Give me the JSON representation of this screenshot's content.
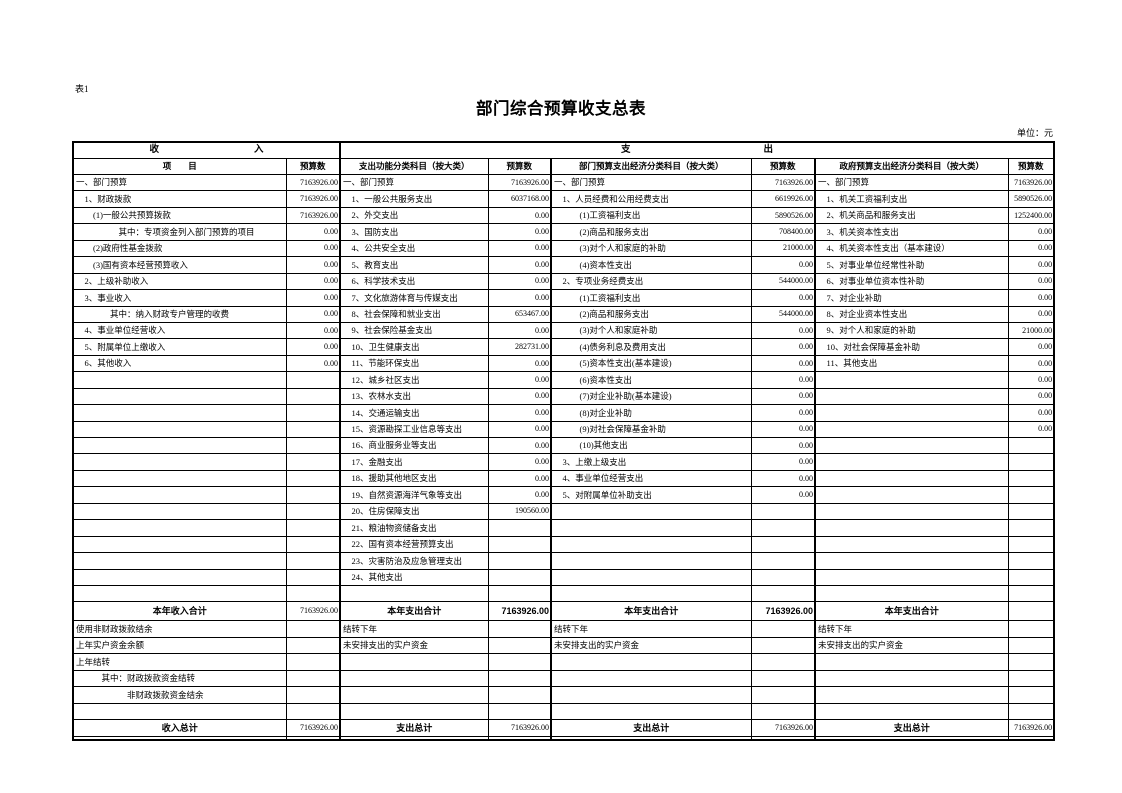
{
  "page": {
    "sheet_label": "表1",
    "title": "部门综合预算收支总表",
    "unit_note": "单位：元"
  },
  "table": {
    "group_headers": {
      "income": "收　　　　　　　　　　入",
      "expense": "支　　　　　　　　　　　　　　出"
    },
    "column_headers": [
      "项　　目",
      "预算数",
      "支出功能分类科目（按大类）",
      "预算数",
      "部门预算支出经济分类科目（按大类）",
      "预算数",
      "政府预算支出经济分类科目（按大类）",
      "预算数"
    ],
    "rows": [
      {
        "type": "data",
        "cells": [
          "一、部门预算",
          "7163926.00",
          "一、部门预算",
          "7163926.00",
          "一、部门预算",
          "7163926.00",
          "一、部门预算",
          "7163926.00"
        ]
      },
      {
        "type": "data",
        "cells": [
          "　1、财政拨款",
          "7163926.00",
          "　1、一般公共服务支出",
          "6037168.00",
          "　1、人员经费和公用经费支出",
          "6619926.00",
          "　1、机关工资福利支出",
          "5890526.00"
        ]
      },
      {
        "type": "data",
        "cells": [
          "　　(1)一般公共预算拨款",
          "7163926.00",
          "　2、外交支出",
          "0.00",
          "　　　(1)工资福利支出",
          "5890526.00",
          "　2、机关商品和服务支出",
          "1252400.00"
        ]
      },
      {
        "type": "data",
        "cells": [
          "　　　　　其中：专项资金列入部门预算的项目",
          "0.00",
          "　3、国防支出",
          "0.00",
          "　　　(2)商品和服务支出",
          "708400.00",
          "　3、机关资本性支出",
          "0.00"
        ]
      },
      {
        "type": "data",
        "cells": [
          "　　(2)政府性基金拨款",
          "0.00",
          "　4、公共安全支出",
          "0.00",
          "　　　(3)对个人和家庭的补助",
          "21000.00",
          "　4、机关资本性支出（基本建设）",
          "0.00"
        ]
      },
      {
        "type": "data",
        "cells": [
          "　　(3)国有资本经营预算收入",
          "0.00",
          "　5、教育支出",
          "0.00",
          "　　　(4)资本性支出",
          "0.00",
          "　5、对事业单位经常性补助",
          "0.00"
        ]
      },
      {
        "type": "data",
        "cells": [
          "　2、上级补助收入",
          "0.00",
          "　6、科学技术支出",
          "0.00",
          "　2、专项业务经费支出",
          "544000.00",
          "　6、对事业单位资本性补助",
          "0.00"
        ]
      },
      {
        "type": "data",
        "cells": [
          "　3、事业收入",
          "0.00",
          "　7、文化旅游体育与传媒支出",
          "0.00",
          "　　　(1)工资福利支出",
          "0.00",
          "　7、对企业补助",
          "0.00"
        ]
      },
      {
        "type": "data",
        "cells": [
          "　　　　其中：纳入财政专户管理的收费",
          "0.00",
          "　8、社会保障和就业支出",
          "653467.00",
          "　　　(2)商品和服务支出",
          "544000.00",
          "　8、对企业资本性支出",
          "0.00"
        ]
      },
      {
        "type": "data",
        "cells": [
          "　4、事业单位经营收入",
          "0.00",
          "　9、社会保险基金支出",
          "0.00",
          "　　　(3)对个人和家庭补助",
          "0.00",
          "　9、对个人和家庭的补助",
          "21000.00"
        ]
      },
      {
        "type": "data",
        "cells": [
          "　5、附属单位上缴收入",
          "0.00",
          "　10、卫生健康支出",
          "282731.00",
          "　　　(4)债务利息及费用支出",
          "0.00",
          "　10、对社会保障基金补助",
          "0.00"
        ]
      },
      {
        "type": "data",
        "cells": [
          "　6、其他收入",
          "0.00",
          "　11、节能环保支出",
          "0.00",
          "　　　(5)资本性支出(基本建设)",
          "0.00",
          "　11、其他支出",
          "0.00"
        ]
      },
      {
        "type": "data",
        "cells": [
          "",
          "",
          "　12、城乡社区支出",
          "0.00",
          "　　　(6)资本性支出",
          "0.00",
          "",
          "0.00"
        ]
      },
      {
        "type": "data",
        "cells": [
          "",
          "",
          "　13、农林水支出",
          "0.00",
          "　　　(7)对企业补助(基本建设)",
          "0.00",
          "",
          "0.00"
        ]
      },
      {
        "type": "data",
        "cells": [
          "",
          "",
          "　14、交通运输支出",
          "0.00",
          "　　　(8)对企业补助",
          "0.00",
          "",
          "0.00"
        ]
      },
      {
        "type": "data",
        "cells": [
          "",
          "",
          "　15、资源勘探工业信息等支出",
          "0.00",
          "　　　(9)对社会保障基金补助",
          "0.00",
          "",
          "0.00"
        ]
      },
      {
        "type": "data",
        "cells": [
          "",
          "",
          "　16、商业服务业等支出",
          "0.00",
          "　　　(10)其他支出",
          "0.00",
          "",
          ""
        ]
      },
      {
        "type": "data",
        "cells": [
          "",
          "",
          "　17、金融支出",
          "0.00",
          "　3、上缴上级支出",
          "0.00",
          "",
          ""
        ]
      },
      {
        "type": "data",
        "cells": [
          "",
          "",
          "　18、援助其他地区支出",
          "0.00",
          "　4、事业单位经营支出",
          "0.00",
          "",
          ""
        ]
      },
      {
        "type": "data",
        "cells": [
          "",
          "",
          "　19、自然资源海洋气象等支出",
          "0.00",
          "　5、对附属单位补助支出",
          "0.00",
          "",
          ""
        ]
      },
      {
        "type": "data",
        "cells": [
          "",
          "",
          "　20、住房保障支出",
          "190560.00",
          "",
          "",
          "",
          ""
        ]
      },
      {
        "type": "data",
        "cells": [
          "",
          "",
          "　21、粮油物资储备支出",
          "",
          "",
          "",
          "",
          ""
        ]
      },
      {
        "type": "data",
        "cells": [
          "",
          "",
          "　22、国有资本经营预算支出",
          "",
          "",
          "",
          "",
          ""
        ]
      },
      {
        "type": "data",
        "cells": [
          "",
          "",
          "　23、灾害防治及应急管理支出",
          "",
          "",
          "",
          "",
          ""
        ]
      },
      {
        "type": "data",
        "cells": [
          "",
          "",
          "　24、其他支出",
          "",
          "",
          "",
          "",
          ""
        ]
      },
      {
        "type": "data",
        "cells": [
          "",
          "",
          "",
          "",
          "",
          "",
          "",
          ""
        ]
      },
      {
        "type": "subtotal",
        "bold_value_cols": [
          3,
          5
        ],
        "cells": [
          "本年收入合计",
          "7163926.00",
          "本年支出合计",
          "7163926.00",
          "本年支出合计",
          "7163926.00",
          "本年支出合计",
          ""
        ]
      },
      {
        "type": "plain",
        "cells": [
          "使用非财政拨款结余",
          "",
          "结转下年",
          "",
          "结转下年",
          "",
          "结转下年",
          ""
        ]
      },
      {
        "type": "plain",
        "cells": [
          "上年实户资金余额",
          "",
          "未安排支出的实户资金",
          "",
          "未安排支出的实户资金",
          "",
          "未安排支出的实户资金",
          ""
        ]
      },
      {
        "type": "plain",
        "cells": [
          "上年结转",
          "",
          "",
          "",
          "",
          "",
          "",
          ""
        ]
      },
      {
        "type": "plain",
        "cells": [
          "　　　其中：财政拨款资金结转",
          "",
          "",
          "",
          "",
          "",
          "",
          ""
        ]
      },
      {
        "type": "plain",
        "cells": [
          "　　　　　　非财政拨款资金结余",
          "",
          "",
          "",
          "",
          "",
          "",
          ""
        ]
      },
      {
        "type": "plain",
        "cells": [
          "",
          "",
          "",
          "",
          "",
          "",
          "",
          ""
        ]
      },
      {
        "type": "grandtotal",
        "cells": [
          "收入总计",
          "7163926.00",
          "支出总计",
          "7163926.00",
          "支出总计",
          "7163926.00",
          "支出总计",
          "7163926.00"
        ]
      },
      {
        "type": "spacer",
        "cells": [
          "",
          "",
          "",
          "",
          "",
          "",
          "",
          ""
        ]
      }
    ]
  }
}
